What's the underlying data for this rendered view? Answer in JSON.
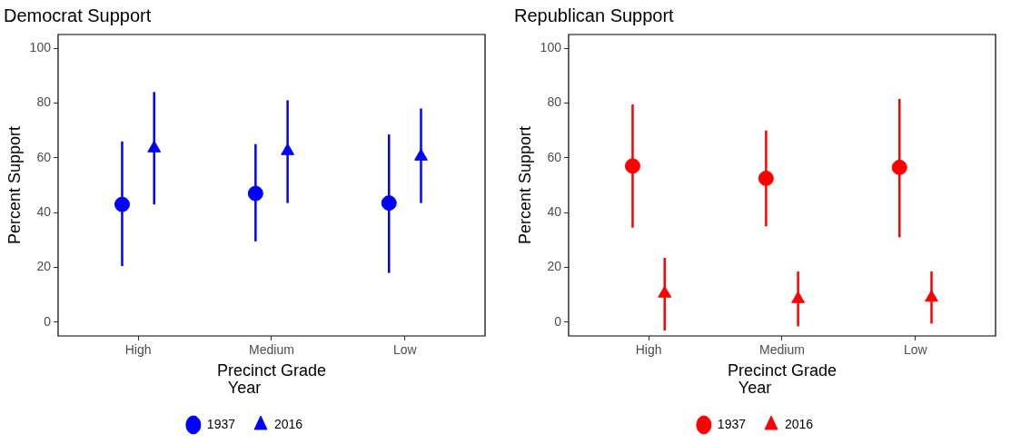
{
  "chart_data": [
    {
      "type": "scatter",
      "title": "Democrat Support",
      "xlabel": "Precinct Grade",
      "ylabel": "Percent Support",
      "legend_title": "Year",
      "legend": "bottom",
      "grid": false,
      "categories": [
        "High",
        "Medium",
        "Low"
      ],
      "ylim": [
        -5,
        105
      ],
      "yticks": [
        0,
        20,
        40,
        60,
        80,
        100
      ],
      "series": [
        {
          "name": "1937",
          "color": "#0000ff",
          "marker": "circle",
          "values": [
            43,
            47,
            43.5
          ],
          "errors": [
            [
              20.5,
              66
            ],
            [
              29.5,
              65
            ],
            [
              18,
              68.5
            ]
          ]
        },
        {
          "name": "2016",
          "color": "#0000ff",
          "marker": "triangle",
          "values": [
            63.5,
            62.5,
            60.5
          ],
          "errors": [
            [
              43,
              84
            ],
            [
              43.5,
              81
            ],
            [
              43.5,
              78
            ]
          ]
        }
      ]
    },
    {
      "type": "scatter",
      "title": "Republican Support",
      "xlabel": "Precinct Grade",
      "ylabel": "Percent Support",
      "legend_title": "Year",
      "legend": "bottom",
      "grid": false,
      "categories": [
        "High",
        "Medium",
        "Low"
      ],
      "ylim": [
        -5,
        105
      ],
      "yticks": [
        0,
        20,
        40,
        60,
        80,
        100
      ],
      "series": [
        {
          "name": "1937",
          "color": "#ff0000",
          "marker": "circle",
          "values": [
            57,
            52.5,
            56.5
          ],
          "errors": [
            [
              34.5,
              79.5
            ],
            [
              35,
              70
            ],
            [
              31,
              81.5
            ]
          ]
        },
        {
          "name": "2016",
          "color": "#ff0000",
          "marker": "triangle",
          "values": [
            10.5,
            8.5,
            9
          ],
          "errors": [
            [
              -3,
              23.5
            ],
            [
              -1.5,
              18.5
            ],
            [
              -0.5,
              18.5
            ]
          ]
        }
      ]
    }
  ]
}
